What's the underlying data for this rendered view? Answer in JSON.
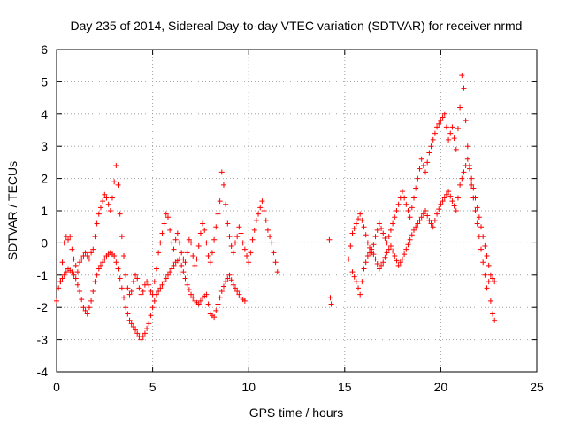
{
  "chart_data": {
    "type": "scatter",
    "title": "Day 235 of 2014, Sidereal Day-to-day VTEC variation (SDTVAR) for receiver nrmd",
    "xlabel": "GPS time / hours",
    "ylabel": "SDTVAR / TECUs",
    "xlim": [
      0,
      25
    ],
    "ylim": [
      -4,
      6
    ],
    "xticks": [
      0,
      5,
      10,
      15,
      20,
      25
    ],
    "yticks": [
      -4,
      -3,
      -2,
      -1,
      0,
      1,
      2,
      3,
      4,
      5,
      6
    ],
    "grid": true,
    "marker": "plus",
    "color": "#ff0000",
    "series": [
      {
        "name": "nrmd",
        "segments": [
          {
            "x": [
              0.0,
              0.1,
              0.2,
              0.3,
              0.4,
              0.5,
              0.6,
              0.7,
              0.8,
              0.9,
              1.0,
              1.1,
              1.2,
              1.3,
              1.4,
              1.5,
              1.6,
              1.7,
              1.8,
              1.9,
              2.0,
              2.1,
              2.2,
              2.3,
              2.4,
              2.5,
              2.6,
              2.7,
              2.8,
              2.9,
              3.0,
              3.1,
              3.2,
              3.3,
              3.4,
              3.5,
              3.6,
              3.7,
              3.8,
              3.9,
              4.0,
              4.1,
              4.2,
              4.3,
              4.4,
              4.5,
              4.6,
              4.7,
              4.8,
              4.9,
              5.0,
              5.1,
              5.2,
              5.3,
              5.4,
              5.5,
              5.6,
              5.7,
              5.8,
              5.9,
              6.0,
              6.1,
              6.2,
              6.3,
              6.4,
              6.5,
              6.6,
              6.7,
              6.8,
              6.9,
              7.0,
              7.1,
              7.2,
              7.3,
              7.4,
              7.5,
              7.6,
              7.7,
              7.8,
              7.9,
              8.0,
              8.1,
              8.2,
              8.3,
              8.4,
              8.5,
              8.6,
              8.7,
              8.8,
              8.9,
              9.0,
              9.1,
              9.2,
              9.3,
              9.4,
              9.5,
              9.6,
              9.7,
              9.8,
              9.9,
              10.0,
              10.1,
              10.2,
              10.3,
              10.4,
              10.5,
              10.6,
              10.7,
              10.8,
              10.9,
              11.0,
              11.1,
              11.2,
              11.3,
              11.4,
              11.5
            ],
            "y": [
              -1.8,
              -1.4,
              -1.2,
              -0.6,
              0.0,
              0.2,
              0.1,
              0.2,
              -0.2,
              -0.5,
              -0.7,
              -0.9,
              -0.6,
              -0.5,
              -0.4,
              -0.3,
              -0.4,
              -0.5,
              -0.3,
              -0.2,
              0.2,
              0.6,
              0.9,
              1.1,
              1.3,
              1.5,
              1.4,
              1.2,
              1.0,
              1.4,
              1.9,
              2.4,
              1.8,
              0.9,
              0.2,
              -0.4,
              -1.0,
              -1.4,
              -1.6,
              -1.5,
              -1.2,
              -1.0,
              -1.1,
              -1.4,
              -1.6,
              -1.5,
              -1.3,
              -1.2,
              -1.3,
              -1.5,
              -1.6,
              -1.2,
              -0.8,
              -0.3,
              0.0,
              0.3,
              0.6,
              0.9,
              0.8,
              0.4,
              0.0,
              -0.2,
              0.1,
              0.3,
              0.0,
              -0.3,
              -0.5,
              -0.6,
              -0.3,
              0.1,
              0.0,
              -0.4,
              -0.7,
              -0.5,
              -0.1,
              0.3,
              0.6,
              0.4,
              0.0,
              -0.4,
              -0.6,
              -0.3,
              0.1,
              0.5,
              0.9,
              1.3,
              2.2,
              1.8,
              1.2,
              0.6,
              0.2,
              -0.1,
              -0.3,
              0.0,
              0.2,
              0.5,
              0.3,
              0.0,
              -0.2,
              -0.4,
              -0.6,
              -0.3,
              0.1,
              0.4,
              0.7,
              0.9,
              1.1,
              1.3,
              1.0,
              0.7,
              0.4,
              0.2,
              0.0,
              -0.3,
              -0.6,
              -0.9
            ]
          },
          {
            "x": [
              0.2,
              0.4,
              0.6,
              0.8,
              1.0,
              1.2,
              1.4,
              1.6,
              1.8,
              2.0,
              2.2,
              2.4,
              2.6,
              2.8,
              3.0,
              3.2,
              3.4,
              3.6,
              3.8,
              4.0,
              4.2,
              4.4,
              4.6,
              4.8,
              5.0,
              5.2,
              5.4,
              5.6,
              5.8,
              6.0,
              6.2,
              6.4,
              6.6,
              6.8,
              7.0,
              7.2,
              7.4,
              7.6,
              7.8,
              8.0,
              8.2,
              8.4,
              8.6,
              8.8,
              9.0,
              9.2,
              9.4,
              9.6,
              9.8
            ],
            "y": [
              -1.2,
              -1.0,
              -0.8,
              -0.9,
              -1.1,
              -1.5,
              -2.0,
              -2.2,
              -1.8,
              -1.2,
              -0.8,
              -0.6,
              -0.4,
              -0.3,
              -0.4,
              -0.8,
              -1.4,
              -2.0,
              -2.4,
              -2.6,
              -2.8,
              -3.0,
              -2.8,
              -2.5,
              -2.0,
              -1.6,
              -1.4,
              -1.2,
              -1.0,
              -0.8,
              -0.6,
              -0.5,
              -0.9,
              -1.3,
              -1.6,
              -1.8,
              -1.9,
              -1.7,
              -1.6,
              -2.2,
              -2.3,
              -1.9,
              -1.5,
              -1.2,
              -1.0,
              -1.3,
              -1.5,
              -1.7,
              -1.8
            ]
          },
          {
            "x": [
              14.2,
              14.25,
              14.3
            ],
            "y": [
              0.1,
              -1.7,
              -1.9
            ]
          },
          {
            "x": [
              15.2,
              15.4,
              15.6,
              15.8,
              16.0,
              16.2,
              16.4,
              16.6,
              16.8,
              17.0,
              17.2,
              17.4,
              17.6,
              17.8,
              18.0,
              18.2,
              18.4,
              18.6,
              18.8,
              19.0,
              19.2,
              19.4,
              19.6,
              19.8,
              20.0,
              20.2,
              20.4,
              20.6,
              20.8,
              21.0,
              21.1,
              21.2,
              21.3,
              21.4,
              21.5,
              21.6,
              21.7,
              21.8,
              21.9,
              22.0,
              22.1,
              22.2,
              22.3,
              22.4,
              22.5,
              22.6,
              22.7,
              22.8
            ],
            "y": [
              -0.5,
              0.3,
              0.6,
              0.9,
              0.5,
              0.0,
              -0.3,
              0.2,
              0.6,
              0.3,
              0.0,
              0.4,
              0.8,
              1.2,
              1.6,
              1.2,
              0.8,
              1.4,
              2.0,
              2.6,
              2.2,
              2.8,
              3.2,
              3.6,
              3.8,
              4.0,
              3.2,
              3.6,
              2.9,
              4.2,
              5.2,
              4.8,
              3.8,
              3.0,
              2.4,
              1.8,
              1.4,
              1.0,
              0.6,
              0.2,
              -0.2,
              -0.6,
              -1.0,
              -1.4,
              -1.2,
              -1.8,
              -2.2,
              -2.4
            ]
          },
          {
            "x": [
              15.4,
              15.6,
              15.8,
              16.0,
              16.2,
              16.4,
              16.6,
              16.8,
              17.0,
              17.2,
              17.4,
              17.6,
              17.8,
              18.0,
              18.2,
              18.4,
              18.6,
              18.8,
              19.0,
              19.2,
              19.4,
              19.6,
              19.8,
              20.0,
              20.2,
              20.4,
              20.6,
              20.8,
              21.0,
              21.2,
              21.4,
              21.6,
              21.8,
              22.0,
              22.2,
              22.4,
              22.6,
              22.8
            ],
            "y": [
              -0.9,
              -1.2,
              -1.6,
              -0.8,
              -0.4,
              -0.2,
              -0.5,
              -0.8,
              -0.6,
              -0.3,
              -0.1,
              -0.4,
              -0.7,
              -0.5,
              -0.2,
              0.1,
              0.4,
              0.6,
              0.8,
              1.0,
              0.7,
              0.5,
              0.9,
              1.2,
              1.4,
              1.6,
              1.3,
              1.0,
              1.8,
              2.2,
              2.6,
              2.0,
              1.4,
              0.8,
              0.2,
              -0.4,
              -1.0,
              -1.2
            ]
          }
        ]
      }
    ]
  }
}
